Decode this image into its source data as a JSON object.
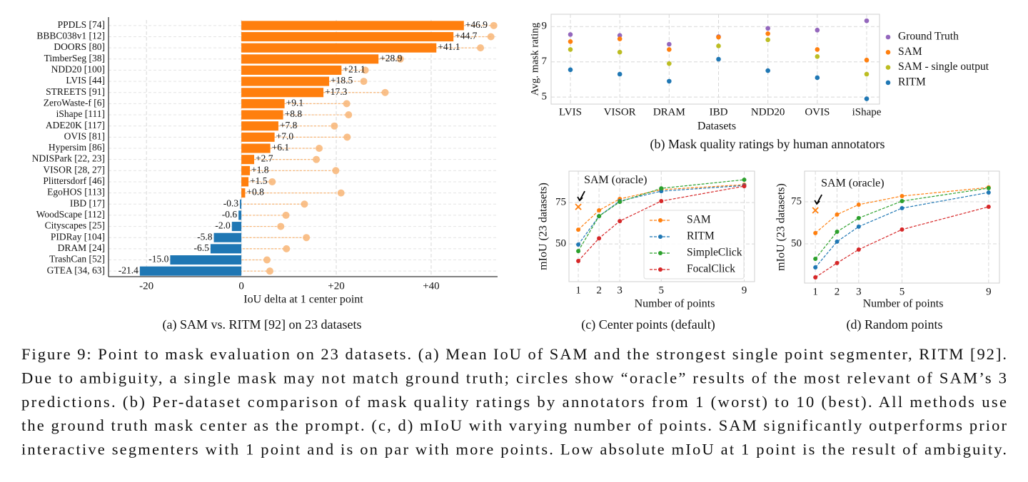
{
  "chart_data": [
    {
      "type": "hbar",
      "categories": [
        "PPDLS [74]",
        "BBBC038v1 [12]",
        "DOORS [80]",
        "TimberSeg [38]",
        "NDD20 [100]",
        "LVIS [44]",
        "STREETS [91]",
        "ZeroWaste-f [6]",
        "iShape [111]",
        "ADE20K [117]",
        "OVIS [81]",
        "Hypersim [86]",
        "NDISPark [22, 23]",
        "VISOR [28, 27]",
        "Plittersdorf [46]",
        "EgoHOS [113]",
        "IBD [17]",
        "WoodScape [112]",
        "Cityscapes [25]",
        "PIDRay [104]",
        "DRAM [24]",
        "TrashCan [52]",
        "GTEA [34, 63]"
      ],
      "values": [
        46.9,
        44.7,
        41.1,
        28.9,
        21.1,
        18.5,
        17.3,
        9.1,
        8.8,
        7.8,
        7.0,
        6.1,
        2.7,
        1.8,
        1.5,
        0.8,
        -0.3,
        -0.6,
        -2.0,
        -5.8,
        -6.5,
        -15.0,
        -21.4
      ],
      "value_labels": [
        "+46.9",
        "+44.7",
        "+41.1",
        "+28.9",
        "+21.1",
        "+18.5",
        "+17.3",
        "+9.1",
        "+8.8",
        "+7.8",
        "+7.0",
        "+6.1",
        "+2.7",
        "+1.8",
        "+1.5",
        "+0.8",
        "-0.3",
        "-0.6",
        "-2.0",
        "-5.8",
        "-6.5",
        "-15.0",
        "-21.4"
      ],
      "color_positive": "#ff7f0e",
      "color_negative": "#1f77b4",
      "oracle": {
        "values": [
          53.2,
          52.6,
          50.4,
          33.5,
          26.1,
          25.8,
          30.3,
          22.2,
          22.6,
          19.6,
          22.3,
          16.4,
          15.8,
          19.9,
          6.5,
          21.0,
          13.3,
          9.4,
          8.3,
          13.7,
          9.5,
          5.4,
          6.0
        ],
        "color": "#f8b575"
      },
      "xlim": [
        -28,
        54
      ],
      "xticks": [
        -20,
        0,
        {
          "value": 20,
          "label": "+20"
        },
        {
          "value": 40,
          "label": "+40"
        }
      ],
      "xlabel": "IoU delta at 1 center point",
      "subcaption": "(a) SAM vs. RITM [92] on 23 datasets",
      "grid": true
    },
    {
      "type": "scatter",
      "categories": [
        "LVIS",
        "VISOR",
        "DRAM",
        "IBD",
        "NDD20",
        "OVIS",
        "iShape"
      ],
      "series": [
        {
          "name": "Ground Truth",
          "color": "#9467bd",
          "values": [
            8.55,
            8.5,
            8.0,
            8.43,
            8.9,
            8.8,
            9.33
          ]
        },
        {
          "name": "SAM",
          "color": "#ff7f0e",
          "values": [
            8.15,
            8.3,
            7.7,
            8.4,
            8.6,
            7.7,
            7.1
          ]
        },
        {
          "name": "SAM - single output",
          "color": "#bcbd22",
          "values": [
            7.7,
            7.55,
            6.9,
            7.9,
            8.25,
            7.3,
            6.3
          ]
        },
        {
          "name": "RITM",
          "color": "#1f77b4",
          "values": [
            6.55,
            6.3,
            5.9,
            7.15,
            6.5,
            6.1,
            4.9
          ]
        }
      ],
      "ylim": [
        4.6,
        9.7
      ],
      "yticks": [
        5,
        7,
        9
      ],
      "ylabel": "Avg. mask rating",
      "xlabel": "Datasets",
      "subcaption": "(b) Mask quality ratings by human annotators",
      "legend": "right",
      "grid": true
    },
    {
      "type": "line",
      "x": [
        1,
        2,
        3,
        5,
        9
      ],
      "series": [
        {
          "name": "SAM",
          "color": "#ff7f0e",
          "values": [
            58.6,
            70.3,
            77.2,
            82.8,
            85.8
          ]
        },
        {
          "name": "RITM",
          "color": "#1f77b4",
          "values": [
            49.6,
            66.8,
            75.9,
            81.9,
            85.3
          ]
        },
        {
          "name": "SimpleClick",
          "color": "#2ca02c",
          "values": [
            45.7,
            66.8,
            75.4,
            83.6,
            88.8
          ]
        },
        {
          "name": "FocalClick",
          "color": "#d62728",
          "values": [
            39.7,
            53.4,
            63.8,
            75.9,
            84.9
          ]
        }
      ],
      "xlim": [
        0.55,
        9.5
      ],
      "ylim": [
        27.2,
        94
      ],
      "xticks": [
        1,
        2,
        3,
        5,
        9
      ],
      "yticks": [
        50,
        75
      ],
      "xlabel": "Number of points",
      "ylabel": "mIoU (23 datasets)",
      "annotation": {
        "text": "SAM (oracle)",
        "x": 1,
        "y": 72.4,
        "color": "#ff7f0e"
      },
      "subcaption": "(c) Center points (default)",
      "legend": "lower right",
      "grid": true
    },
    {
      "type": "line",
      "x": [
        1,
        2,
        3,
        5,
        9
      ],
      "series": [
        {
          "color": "#ff7f0e",
          "values": [
            56.4,
            67.4,
            73.3,
            78.4,
            83.5
          ]
        },
        {
          "color": "#1f77b4",
          "values": [
            36.0,
            51.3,
            60.2,
            71.2,
            80.5
          ]
        },
        {
          "color": "#2ca02c",
          "values": [
            41.1,
            57.2,
            65.3,
            75.4,
            83.1
          ]
        },
        {
          "color": "#d62728",
          "values": [
            30.1,
            38.6,
            46.6,
            58.5,
            72.0
          ]
        }
      ],
      "xlim": [
        0.5,
        9.5
      ],
      "ylim": [
        26.7,
        93.2
      ],
      "xticks": [
        1,
        2,
        3,
        5,
        9
      ],
      "yticks": [
        50,
        75
      ],
      "xlabel": "Number of points",
      "ylabel": "mIoU (23 datasets)",
      "annotation": {
        "text": "SAM (oracle)",
        "x": 1,
        "y": 69.9,
        "color": "#ff7f0e"
      },
      "subcaption": "(d) Random points",
      "grid": true
    }
  ],
  "caption": {
    "lines": [
      "Figure 9: Point to mask evaluation on 23 datasets. (a) Mean IoU of SAM and the strongest single point segmenter, RITM [92].",
      "Due to ambiguity, a single mask may not match ground truth; circles show “oracle” results of the most relevant of SAM’s 3",
      "predictions. (b) Per-dataset comparison of mask quality ratings by annotators from 1 (worst) to 10 (best). All methods use",
      "the ground truth mask center as the prompt. (c, d) mIoU with varying number of points. SAM significantly outperforms prior",
      "interactive segmenters with 1 point and is on par with more points. Low absolute mIoU at 1 point is the result of ambiguity."
    ]
  }
}
